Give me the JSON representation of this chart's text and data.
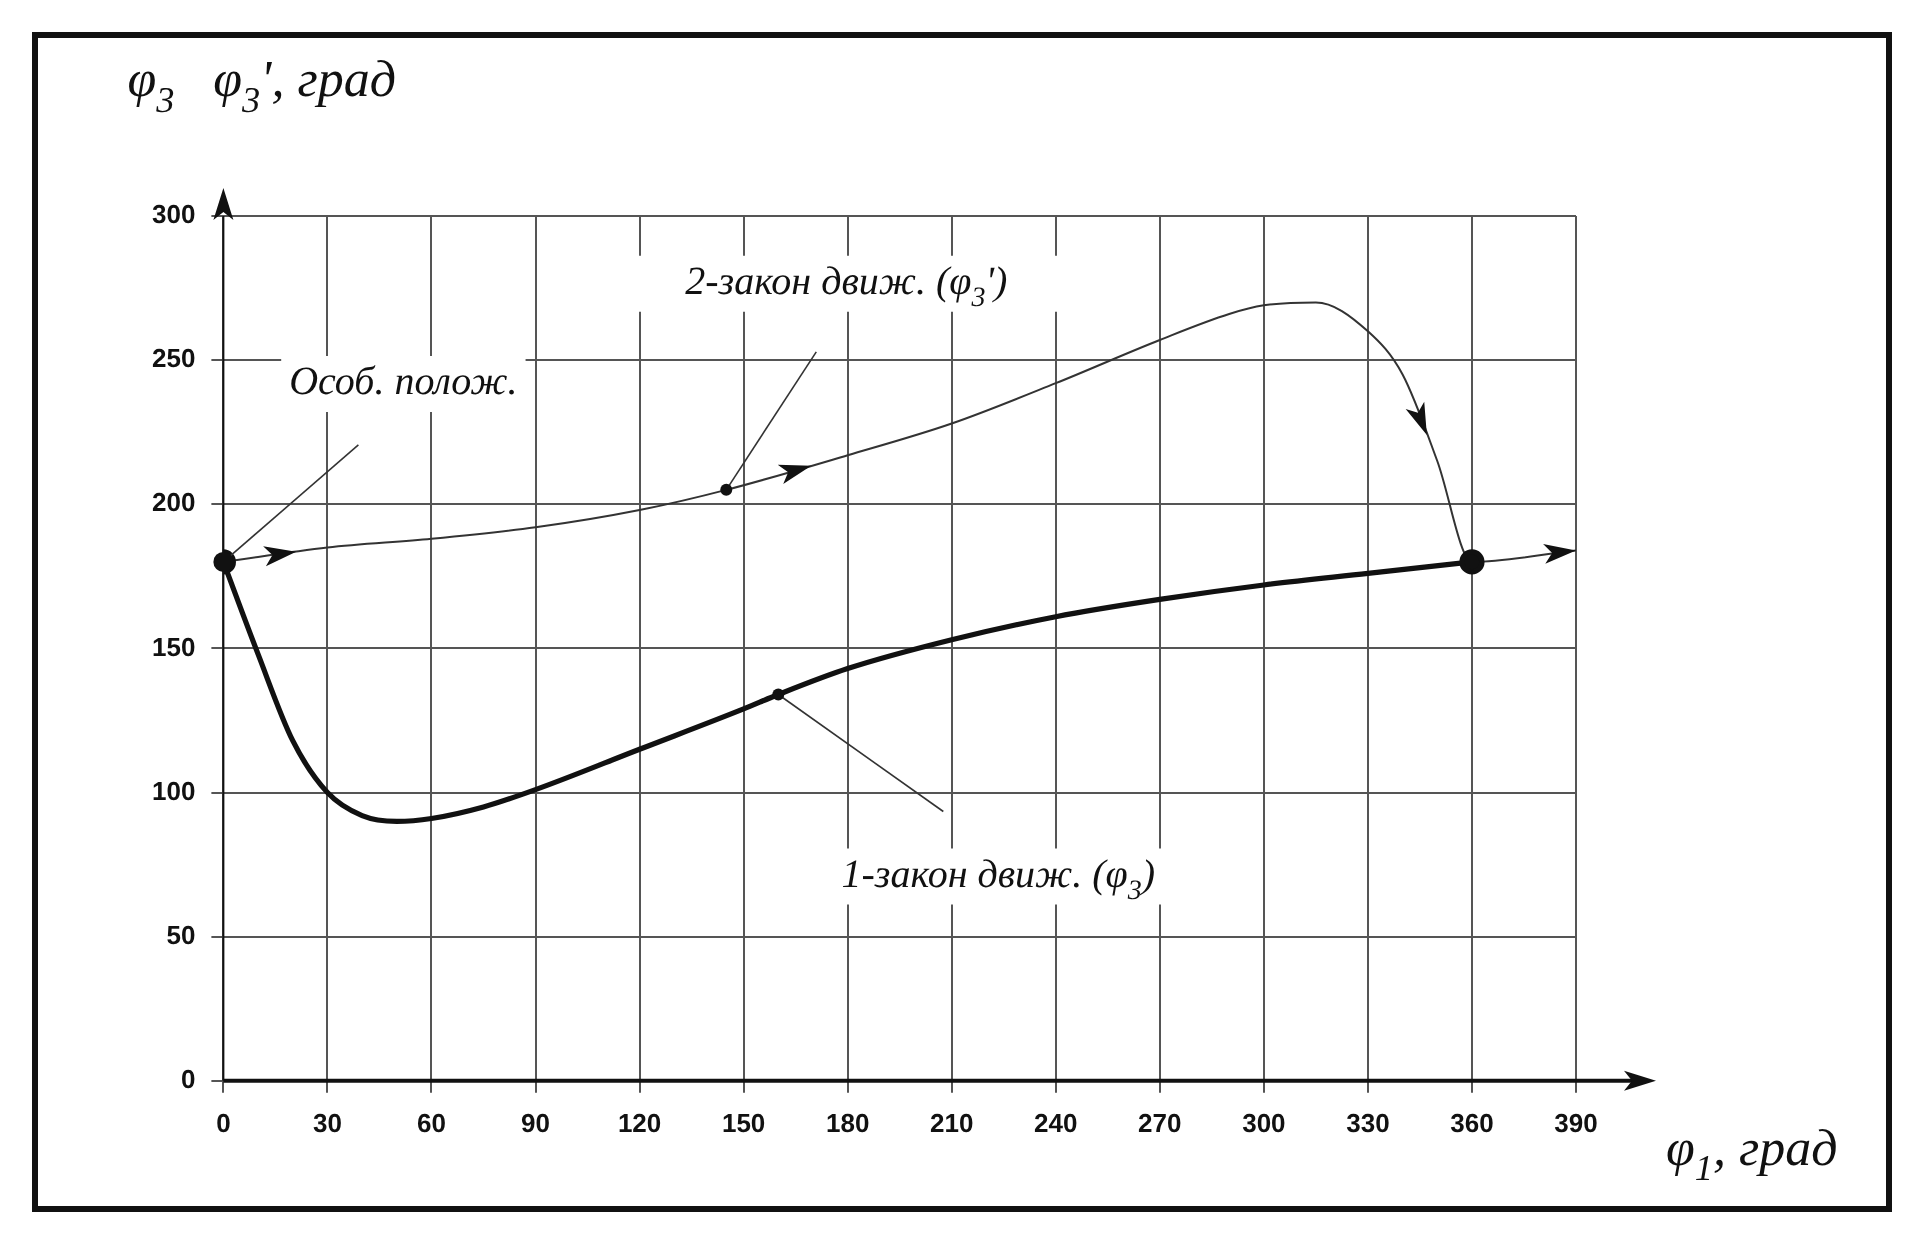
{
  "chart_data": {
    "type": "line",
    "xlabel": "φ$_{1}$, град",
    "ylabel": "φ$_{3}$   φ$_{3}$', град",
    "xlim": [
      0,
      390
    ],
    "xticks": [
      0,
      30,
      60,
      90,
      120,
      150,
      180,
      210,
      240,
      270,
      300,
      330,
      360,
      390
    ],
    "ylim": [
      0,
      300
    ],
    "yticks": [
      0,
      50,
      100,
      150,
      200,
      250,
      300
    ],
    "grid": true,
    "legend": false,
    "series": [
      {
        "color": "#111111",
        "x": [
          0,
          10,
          20,
          30,
          40,
          50,
          60,
          75,
          90,
          120,
          150,
          160,
          180,
          210,
          240,
          270,
          300,
          330,
          360
        ],
        "values": [
          180,
          148,
          118,
          100,
          92,
          90,
          91,
          95,
          101,
          115,
          129,
          134,
          143,
          153,
          161,
          167,
          172,
          176,
          180
        ]
      },
      {
        "color": "#333333",
        "x": [
          0,
          30,
          60,
          90,
          120,
          145,
          180,
          210,
          240,
          270,
          290,
          300,
          315,
          330,
          340,
          350,
          360,
          390
        ],
        "values": [
          180,
          185,
          188,
          192,
          198,
          205,
          217,
          228,
          242,
          257,
          266,
          269,
          270,
          260,
          245,
          215,
          180,
          184
        ]
      }
    ],
    "annotations": [
      {
        "text": "Особ. полож.",
        "x": 0,
        "y": 180
      },
      {
        "text": "2-закон движ. (φ$_{3}$')",
        "x": 145,
        "y": 205
      },
      {
        "text": "1-закон движ. (φ$_{3}$)",
        "x": 160,
        "y": 134
      }
    ]
  }
}
